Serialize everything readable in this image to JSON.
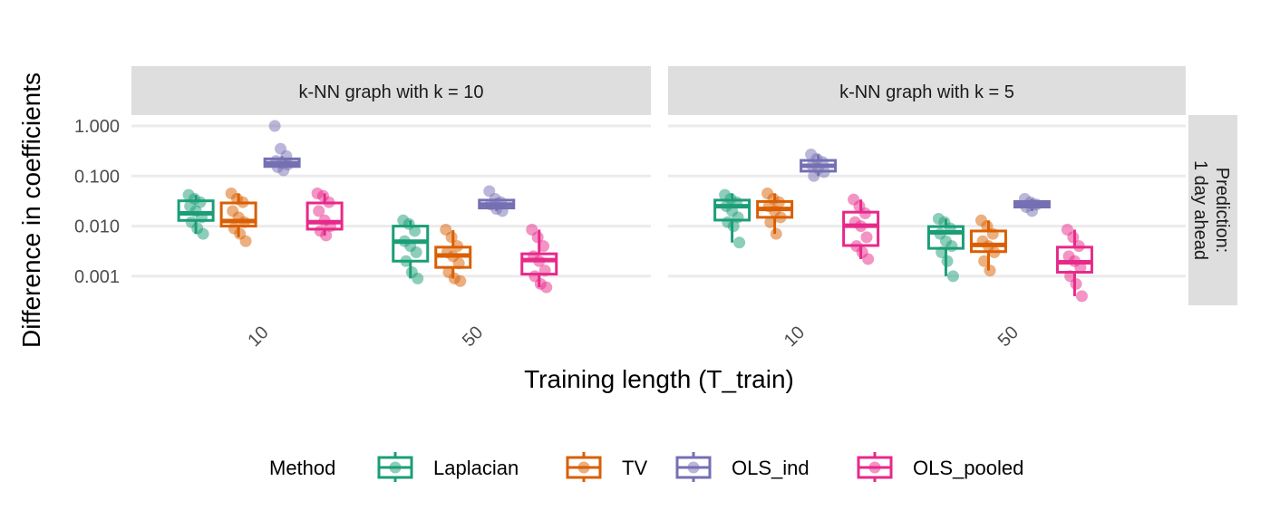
{
  "chart_data": {
    "type": "boxplot",
    "xlabel": "Training length (T_train)",
    "ylabel": "Difference in coefficients",
    "y_scale": "log10",
    "ylim": [
      0.0006,
      1.6
    ],
    "y_ticks": [
      "0.001",
      "0.010",
      "0.100",
      "1.000"
    ],
    "y_tick_values": [
      0.001,
      0.01,
      0.1,
      1
    ],
    "grid": true,
    "categories": [
      "10",
      "50"
    ],
    "row_strip": "Prediction:\n1 day ahead",
    "legend": {
      "title": "Method",
      "position": "bottom"
    },
    "methods": [
      {
        "name": "Laplacian",
        "color": "#1B9E77"
      },
      {
        "name": "TV",
        "color": "#D95F02"
      },
      {
        "name": "OLS_ind",
        "color": "#7570B3"
      },
      {
        "name": "OLS_pooled",
        "color": "#E7298A"
      }
    ],
    "panels": [
      {
        "title": "k-NN graph with k = 10",
        "groups": [
          {
            "x": "10",
            "boxes": [
              {
                "stats": [
                  0.007,
                  0.013,
                  0.018,
                  0.032,
                  0.042
                ],
                "points": [
                  0.042,
                  0.035,
                  0.03,
                  0.025,
                  0.02,
                  0.015,
                  0.012,
                  0.009,
                  0.007
                ]
              },
              {
                "stats": [
                  0.006,
                  0.01,
                  0.0126,
                  0.029,
                  0.045
                ],
                "points": [
                  0.045,
                  0.035,
                  0.03,
                  0.02,
                  0.015,
                  0.012,
                  0.009,
                  0.007,
                  0.005
                ]
              },
              {
                "stats": [
                  0.15,
                  0.155,
                  0.18,
                  0.22,
                  0.25
                ],
                "points": [
                  1.0,
                  0.35,
                  0.25,
                  0.2,
                  0.18,
                  0.17,
                  0.15,
                  0.13
                ]
              },
              {
                "stats": [
                  0.0065,
                  0.0087,
                  0.012,
                  0.029,
                  0.045
                ],
                "points": [
                  0.045,
                  0.04,
                  0.03,
                  0.02,
                  0.013,
                  0.01,
                  0.008,
                  0.0065
                ]
              }
            ]
          },
          {
            "x": "50",
            "boxes": [
              {
                "stats": [
                  0.0009,
                  0.002,
                  0.0049,
                  0.01,
                  0.013
                ],
                "points": [
                  0.013,
                  0.011,
                  0.008,
                  0.005,
                  0.004,
                  0.003,
                  0.002,
                  0.0012,
                  0.0009
                ]
              },
              {
                "stats": [
                  0.0009,
                  0.0015,
                  0.0026,
                  0.0038,
                  0.0083
                ],
                "points": [
                  0.0085,
                  0.006,
                  0.004,
                  0.003,
                  0.0025,
                  0.0018,
                  0.0012,
                  0.0009,
                  0.0008
                ]
              },
              {
                "stats": [
                  0.02,
                  0.023,
                  0.027,
                  0.033,
                  0.036
                ],
                "points": [
                  0.05,
                  0.035,
                  0.03,
                  0.027,
                  0.022,
                  0.02
                ]
              },
              {
                "stats": [
                  0.0006,
                  0.0011,
                  0.0021,
                  0.0028,
                  0.0085
                ],
                "points": [
                  0.0085,
                  0.006,
                  0.004,
                  0.0025,
                  0.002,
                  0.0013,
                  0.001,
                  0.0007,
                  0.0006
                ]
              }
            ]
          }
        ]
      },
      {
        "title": "k-NN graph with k = 5",
        "groups": [
          {
            "x": "10",
            "boxes": [
              {
                "stats": [
                  0.0047,
                  0.0132,
                  0.025,
                  0.033,
                  0.045
                ],
                "points": [
                  0.042,
                  0.035,
                  0.03,
                  0.025,
                  0.02,
                  0.015,
                  0.012,
                  0.01,
                  0.0047
                ]
              },
              {
                "stats": [
                  0.007,
                  0.015,
                  0.022,
                  0.031,
                  0.045
                ],
                "points": [
                  0.045,
                  0.035,
                  0.03,
                  0.025,
                  0.02,
                  0.015,
                  0.012,
                  0.007
                ]
              },
              {
                "stats": [
                  0.1,
                  0.125,
                  0.16,
                  0.205,
                  0.27
                ],
                "points": [
                  0.27,
                  0.22,
                  0.19,
                  0.16,
                  0.14,
                  0.12,
                  0.1
                ]
              },
              {
                "stats": [
                  0.0022,
                  0.0041,
                  0.0102,
                  0.019,
                  0.034
                ],
                "points": [
                  0.034,
                  0.025,
                  0.018,
                  0.012,
                  0.01,
                  0.006,
                  0.004,
                  0.003,
                  0.0022
                ]
              }
            ]
          },
          {
            "x": "50",
            "boxes": [
              {
                "stats": [
                  0.001,
                  0.0036,
                  0.0075,
                  0.0098,
                  0.014
                ],
                "points": [
                  0.014,
                  0.012,
                  0.009,
                  0.007,
                  0.005,
                  0.004,
                  0.003,
                  0.002,
                  0.001
                ]
              },
              {
                "stats": [
                  0.0013,
                  0.0031,
                  0.0042,
                  0.008,
                  0.013
                ],
                "points": [
                  0.013,
                  0.01,
                  0.007,
                  0.005,
                  0.004,
                  0.003,
                  0.002,
                  0.0013
                ]
              },
              {
                "stats": [
                  0.02,
                  0.024,
                  0.027,
                  0.031,
                  0.035
                ],
                "points": [
                  0.035,
                  0.03,
                  0.027,
                  0.024,
                  0.02
                ]
              },
              {
                "stats": [
                  0.0004,
                  0.0012,
                  0.0019,
                  0.0038,
                  0.0085
                ],
                "points": [
                  0.0085,
                  0.006,
                  0.004,
                  0.0025,
                  0.002,
                  0.0015,
                  0.001,
                  0.0007,
                  0.0004
                ]
              }
            ]
          }
        ]
      }
    ]
  }
}
